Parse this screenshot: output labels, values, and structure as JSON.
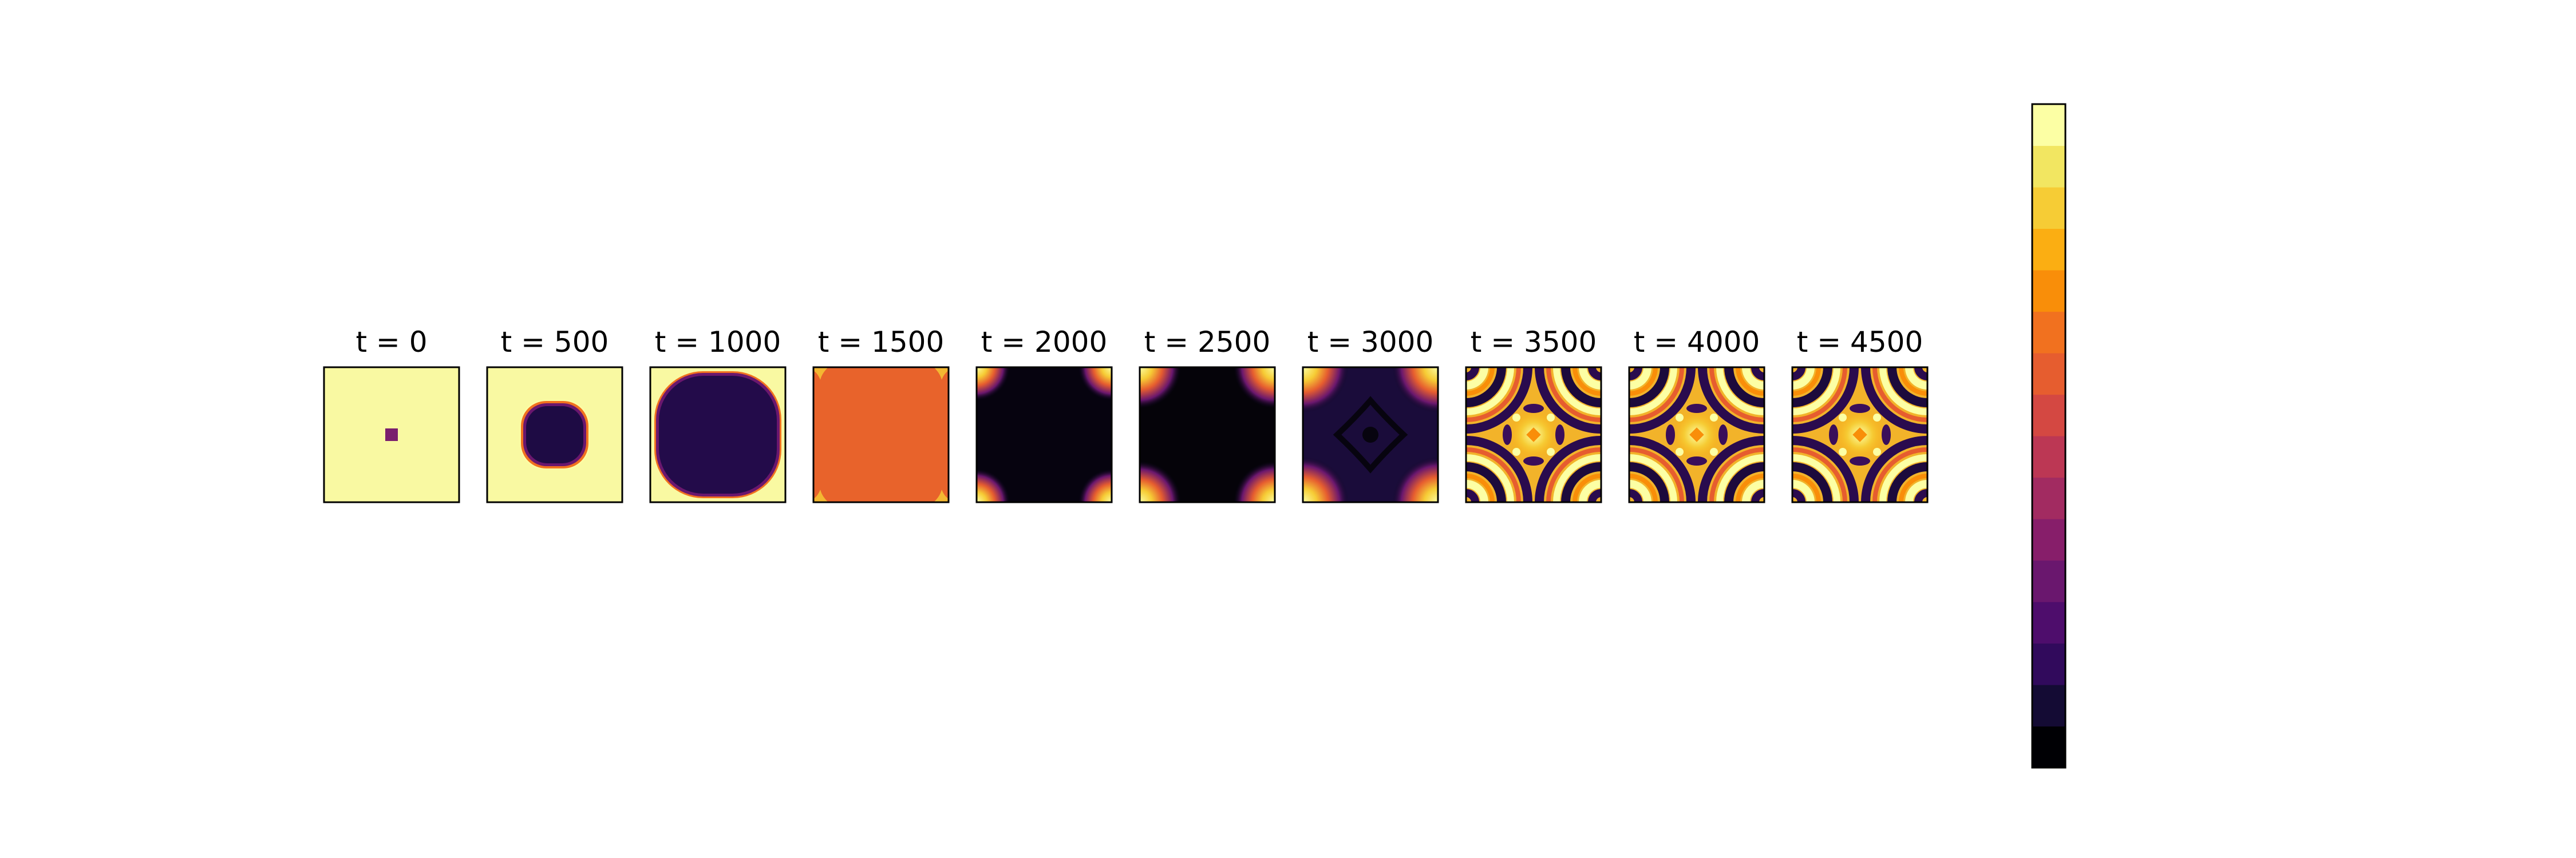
{
  "chart_data": {
    "type": "heatmap",
    "title": "",
    "xlabel": "",
    "ylabel": "",
    "grid": false,
    "colormap": "inferno",
    "colorbar": {
      "levels": 16,
      "colors": [
        "#000004",
        "#140b34",
        "#310a5c",
        "#4e0d6c",
        "#6a176e",
        "#871e6a",
        "#a22b61",
        "#bc3754",
        "#d44842",
        "#e65d2f",
        "#f1711f",
        "#f98e09",
        "#fbae12",
        "#f6cc35",
        "#f2e661",
        "#fcffa4"
      ],
      "tick_labels": []
    },
    "panels": [
      {
        "label": "t = 0",
        "state": "uniform high with a small low-valued square seed at the center"
      },
      {
        "label": "t = 500",
        "state": "dark rounded square region growing from the center"
      },
      {
        "label": "t = 1000",
        "state": "dark region filling almost the whole domain"
      },
      {
        "label": "t = 1500",
        "state": "uniform orange with small bright corner features"
      },
      {
        "label": "t = 2000",
        "state": "dark with bright quarter-disc blobs at the four corners"
      },
      {
        "label": "t = 2500",
        "state": "dark with larger bright corner blobs"
      },
      {
        "label": "t = 3000",
        "state": "dark purple with bright corner blobs and a central cross pattern"
      },
      {
        "label": "t = 3500",
        "state": "ring and spot pattern with fourfold symmetry"
      },
      {
        "label": "t = 4000",
        "state": "ring and spot pattern with fourfold symmetry"
      },
      {
        "label": "t = 4500",
        "state": "ring and spot pattern with fourfold symmetry"
      }
    ]
  }
}
